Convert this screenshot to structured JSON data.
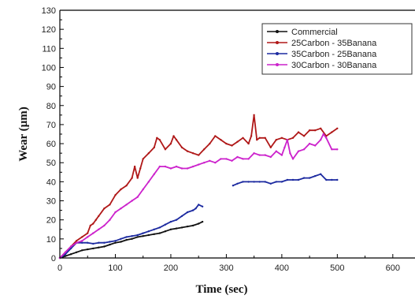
{
  "chart_data": {
    "type": "line",
    "title": "",
    "xlabel": "Time (sec)",
    "ylabel": "Wear (µm)",
    "xlim": [
      0,
      640
    ],
    "ylim": [
      0,
      130
    ],
    "xticks": [
      0,
      100,
      200,
      300,
      400,
      500,
      600
    ],
    "yticks": [
      0,
      10,
      20,
      30,
      40,
      50,
      60,
      70,
      80,
      90,
      100,
      110,
      120,
      130
    ],
    "grid": false,
    "legend_position": "top-right",
    "series": [
      {
        "name": "Commercial",
        "color": "#111111",
        "x": [
          0,
          10,
          20,
          30,
          40,
          50,
          60,
          70,
          80,
          90,
          100,
          110,
          120,
          130,
          140,
          150,
          160,
          170,
          180,
          190,
          200,
          210,
          220,
          230,
          240,
          250,
          257
        ],
        "y": [
          0,
          1,
          2,
          3,
          4,
          4.5,
          5,
          5.5,
          6,
          7,
          8,
          8.5,
          9.5,
          10,
          11,
          11.5,
          12,
          12.5,
          13,
          14,
          15,
          15.5,
          16,
          16.5,
          17,
          18,
          19
        ]
      },
      {
        "name": "25Carbon - 35Banana",
        "color": "#b01818",
        "x": [
          0,
          10,
          20,
          30,
          40,
          50,
          55,
          60,
          65,
          70,
          80,
          90,
          100,
          110,
          120,
          130,
          135,
          140,
          145,
          150,
          160,
          170,
          175,
          180,
          190,
          200,
          205,
          210,
          220,
          230,
          240,
          250,
          260,
          270,
          280,
          290,
          300,
          310,
          320,
          330,
          340,
          345,
          350,
          355,
          360,
          370,
          380,
          390,
          400,
          410,
          420,
          430,
          440,
          450,
          460,
          470,
          480,
          490,
          500
        ],
        "y": [
          0,
          3,
          6,
          9,
          11,
          13,
          17,
          18,
          20,
          22,
          26,
          28,
          33,
          36,
          38,
          42,
          48,
          42,
          47,
          52,
          55,
          58,
          63,
          62,
          57,
          60,
          64,
          62,
          58,
          56,
          55,
          54,
          57,
          60,
          64,
          62,
          60,
          59,
          61,
          63,
          60,
          64,
          75,
          62,
          63,
          63,
          58,
          62,
          63,
          62,
          63,
          66,
          64,
          67,
          67,
          68,
          64,
          66,
          68
        ]
      },
      {
        "name": "35Carbon - 25Banana",
        "color": "#1c2aa0",
        "x": [
          0,
          10,
          20,
          30,
          40,
          50,
          60,
          70,
          80,
          90,
          100,
          110,
          120,
          130,
          140,
          150,
          160,
          170,
          180,
          190,
          200,
          210,
          220,
          230,
          240,
          245,
          250,
          257,
          null,
          312,
          320,
          330,
          340,
          350,
          360,
          370,
          380,
          390,
          400,
          410,
          420,
          430,
          440,
          450,
          460,
          470,
          480,
          490,
          500
        ],
        "y": [
          0,
          2,
          5,
          8,
          8,
          8,
          7.5,
          8,
          8,
          8.5,
          9,
          10,
          11,
          11.5,
          12,
          13,
          14,
          15,
          16,
          17.5,
          19,
          20,
          22,
          24,
          25,
          26,
          28,
          27,
          null,
          38,
          39,
          40,
          40,
          40,
          40,
          40,
          39,
          40,
          40,
          41,
          41,
          41,
          42,
          42,
          43,
          44,
          41,
          41,
          41
        ]
      },
      {
        "name": "30Carbon - 30Banana",
        "color": "#cc22cc",
        "x": [
          0,
          10,
          20,
          30,
          40,
          50,
          60,
          70,
          80,
          90,
          100,
          110,
          120,
          130,
          140,
          150,
          160,
          170,
          180,
          190,
          200,
          210,
          220,
          230,
          240,
          250,
          260,
          270,
          280,
          290,
          300,
          310,
          320,
          330,
          340,
          350,
          360,
          370,
          380,
          390,
          400,
          405,
          410,
          415,
          420,
          430,
          440,
          450,
          460,
          470,
          475,
          480,
          490,
          500
        ],
        "y": [
          0,
          3,
          6,
          8,
          9,
          11,
          13,
          15,
          17,
          20,
          24,
          26,
          28,
          30,
          32,
          36,
          40,
          44,
          48,
          48,
          47,
          48,
          47,
          47,
          48,
          49,
          50,
          51,
          50,
          52,
          52,
          51,
          53,
          52,
          52,
          55,
          54,
          54,
          53,
          56,
          54,
          58,
          62,
          55,
          52,
          56,
          57,
          60,
          59,
          62,
          65,
          63,
          57,
          57
        ]
      }
    ]
  }
}
